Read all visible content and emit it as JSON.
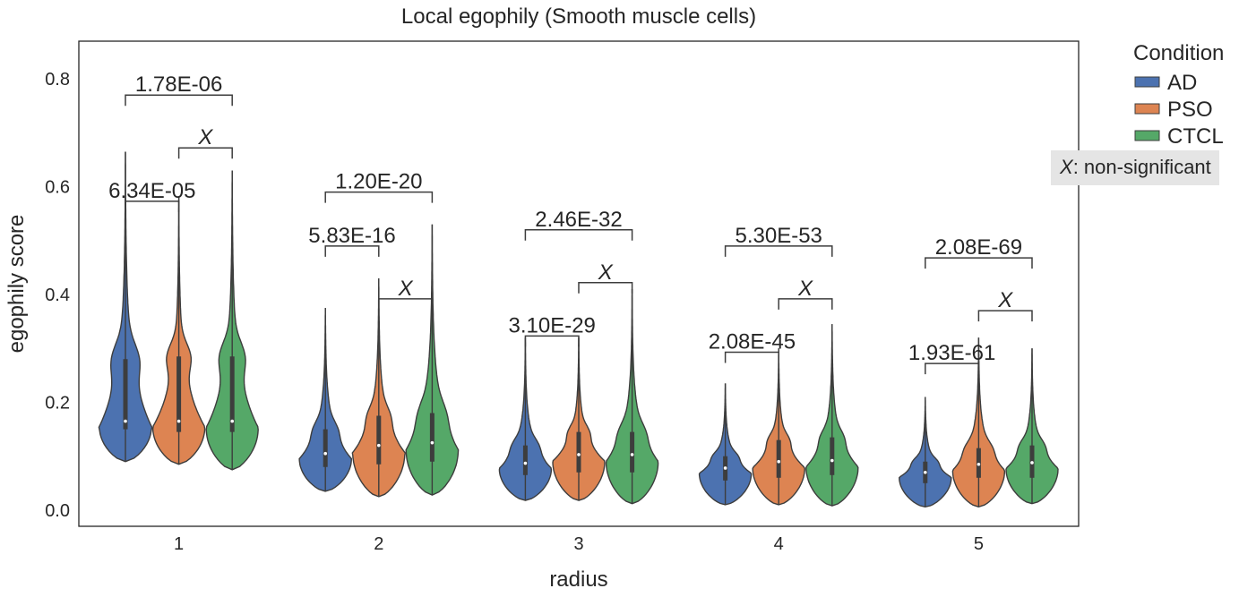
{
  "chart_data": {
    "type": "violin",
    "title": "Local egophily (Smooth muscle cells)",
    "xlabel": "radius",
    "ylabel": "egophily score",
    "categories": [
      "1",
      "2",
      "3",
      "4",
      "5"
    ],
    "ylim": [
      -0.03,
      0.87
    ],
    "yticks": [
      "0.0",
      "0.2",
      "0.4",
      "0.6",
      "0.8"
    ],
    "grid": false,
    "legend": {
      "title": "Condition",
      "placement": "outside-right",
      "entries": [
        "AD",
        "PSO",
        "CTCL"
      ]
    },
    "colors": {
      "AD": "#4c72b0",
      "PSO": "#dd8452",
      "CTCL": "#55a868"
    },
    "note": {
      "symbol": "X",
      "text": ": non-significant"
    },
    "series": [
      {
        "name": "AD",
        "min": [
          0.09,
          0.035,
          0.018,
          0.01,
          0.006
        ],
        "max": [
          0.665,
          0.375,
          0.32,
          0.235,
          0.21
        ],
        "q1": [
          0.15,
          0.08,
          0.065,
          0.055,
          0.05
        ],
        "median": [
          0.165,
          0.105,
          0.087,
          0.078,
          0.07
        ],
        "q3": [
          0.28,
          0.15,
          0.12,
          0.1,
          0.09
        ]
      },
      {
        "name": "PSO",
        "min": [
          0.085,
          0.025,
          0.018,
          0.01,
          0.006
        ],
        "max": [
          0.58,
          0.43,
          0.32,
          0.3,
          0.32
        ],
        "q1": [
          0.145,
          0.085,
          0.07,
          0.06,
          0.06
        ],
        "median": [
          0.165,
          0.12,
          0.103,
          0.09,
          0.085
        ],
        "q3": [
          0.285,
          0.175,
          0.145,
          0.13,
          0.115
        ]
      },
      {
        "name": "CTCL",
        "min": [
          0.075,
          0.028,
          0.012,
          0.008,
          0.012
        ],
        "max": [
          0.63,
          0.53,
          0.41,
          0.345,
          0.3
        ],
        "q1": [
          0.145,
          0.09,
          0.07,
          0.065,
          0.06
        ],
        "median": [
          0.165,
          0.125,
          0.103,
          0.092,
          0.088
        ],
        "q3": [
          0.285,
          0.18,
          0.145,
          0.135,
          0.12
        ]
      }
    ],
    "annotations": [
      {
        "category": "1",
        "from": "AD",
        "to": "CTCL",
        "y": 0.77,
        "label": "1.78E-06"
      },
      {
        "category": "1",
        "from": "PSO",
        "to": "CTCL",
        "y": 0.672,
        "label": "X"
      },
      {
        "category": "1",
        "from": "AD",
        "to": "PSO",
        "y": 0.573,
        "label": "6.34E-05"
      },
      {
        "category": "2",
        "from": "AD",
        "to": "CTCL",
        "y": 0.59,
        "label": "1.20E-20"
      },
      {
        "category": "2",
        "from": "AD",
        "to": "PSO",
        "y": 0.49,
        "label": "5.83E-16"
      },
      {
        "category": "2",
        "from": "PSO",
        "to": "CTCL",
        "y": 0.392,
        "label": "X"
      },
      {
        "category": "3",
        "from": "AD",
        "to": "CTCL",
        "y": 0.52,
        "label": "2.46E-32"
      },
      {
        "category": "3",
        "from": "PSO",
        "to": "CTCL",
        "y": 0.422,
        "label": "X"
      },
      {
        "category": "3",
        "from": "AD",
        "to": "PSO",
        "y": 0.323,
        "label": "3.10E-29"
      },
      {
        "category": "4",
        "from": "AD",
        "to": "CTCL",
        "y": 0.49,
        "label": "5.30E-53"
      },
      {
        "category": "4",
        "from": "PSO",
        "to": "CTCL",
        "y": 0.392,
        "label": "X"
      },
      {
        "category": "4",
        "from": "AD",
        "to": "PSO",
        "y": 0.293,
        "label": "2.08E-45"
      },
      {
        "category": "5",
        "from": "AD",
        "to": "CTCL",
        "y": 0.468,
        "label": "2.08E-69"
      },
      {
        "category": "5",
        "from": "PSO",
        "to": "CTCL",
        "y": 0.37,
        "label": "X"
      },
      {
        "category": "5",
        "from": "AD",
        "to": "PSO",
        "y": 0.272,
        "label": "1.93E-61"
      }
    ]
  }
}
